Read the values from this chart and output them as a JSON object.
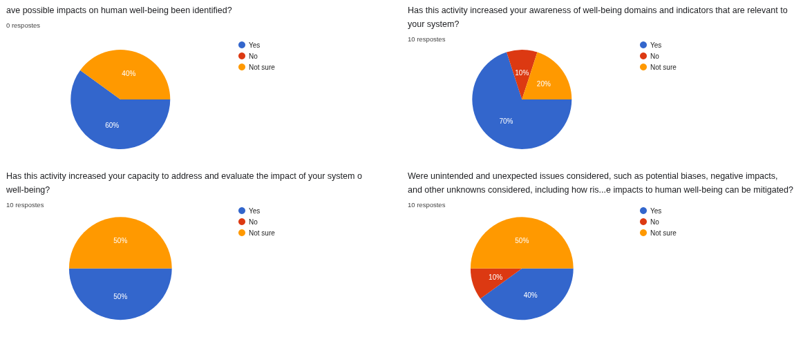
{
  "chart_data": [
    {
      "type": "pie",
      "title": "ave possible impacts on human well-being been identified?",
      "subtitle": "0 respostes",
      "categories": [
        "Yes",
        "No",
        "Not sure"
      ],
      "values": [
        60,
        0,
        40
      ],
      "colors": [
        "#3366cc",
        "#dc3912",
        "#ff9900"
      ],
      "value_labels": [
        "60%",
        null,
        "40%"
      ],
      "legend": "right"
    },
    {
      "type": "pie",
      "title": "Has this activity increased your awareness of well-being domains and indicators that are relevant to your system?",
      "subtitle": "10 respostes",
      "categories": [
        "Yes",
        "No",
        "Not sure"
      ],
      "values": [
        70,
        10,
        20
      ],
      "colors": [
        "#3366cc",
        "#dc3912",
        "#ff9900"
      ],
      "value_labels": [
        "70%",
        "10%",
        "20%"
      ],
      "legend": "right"
    },
    {
      "type": "pie",
      "title": "Has this activity increased your capacity to address and evaluate the impact of your system o well-being?",
      "subtitle": "10 respostes",
      "categories": [
        "Yes",
        "No",
        "Not sure"
      ],
      "values": [
        50,
        0,
        50
      ],
      "colors": [
        "#3366cc",
        "#dc3912",
        "#ff9900"
      ],
      "value_labels": [
        "50%",
        null,
        "50%"
      ],
      "legend": "right"
    },
    {
      "type": "pie",
      "title": "Were unintended and unexpected issues considered, such as potential biases, negative impacts, and other unknowns considered, including how ris...e impacts to human well-being can be mitigated?",
      "subtitle": "10 respostes",
      "categories": [
        "Yes",
        "No",
        "Not sure"
      ],
      "values": [
        40,
        10,
        50
      ],
      "colors": [
        "#3366cc",
        "#dc3912",
        "#ff9900"
      ],
      "value_labels": [
        "40%",
        "10%",
        "50%"
      ],
      "legend": "right"
    }
  ]
}
